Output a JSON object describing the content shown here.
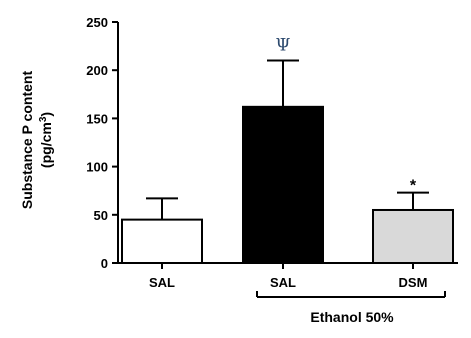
{
  "chart_data": {
    "type": "bar",
    "ylabel_line1": "Substance P content",
    "ylabel_line2_prefix": "(pg/cm",
    "ylabel_line2_sup": "3",
    "ylabel_line2_suffix": ")",
    "ylim": [
      0,
      250
    ],
    "yticks": [
      0,
      50,
      100,
      150,
      200,
      250
    ],
    "grid": false,
    "categories": [
      "SAL",
      "SAL",
      "DSM"
    ],
    "values": [
      45,
      162,
      55
    ],
    "errors": [
      22,
      48,
      18
    ],
    "bar_colors": [
      "#ffffff",
      "#000000",
      "#d9d9d9"
    ],
    "annotations": [
      "",
      "Ψ",
      "*"
    ],
    "group_label": "Ethanol 50%"
  }
}
